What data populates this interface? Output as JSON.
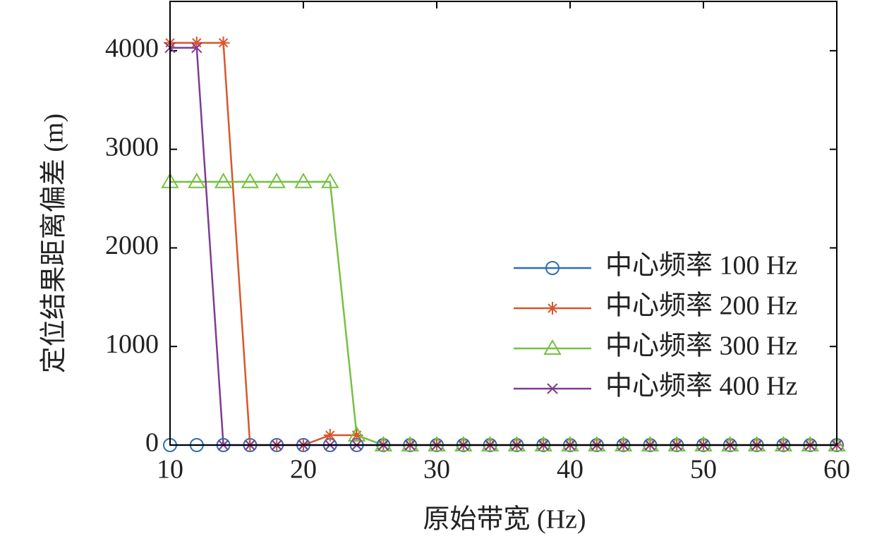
{
  "chart_data": {
    "type": "line",
    "x_label": "原始带宽 (Hz)",
    "y_label": "定位结果距离偏差 (m)",
    "x": [
      10,
      12,
      14,
      16,
      18,
      20,
      22,
      24,
      26,
      28,
      30,
      32,
      34,
      36,
      38,
      40,
      42,
      44,
      46,
      48,
      50,
      52,
      54,
      56,
      58,
      60
    ],
    "series": [
      {
        "name": "中心频率 100 Hz",
        "color": "#2f6fb0",
        "marker": "circle",
        "values": [
          0,
          0,
          0,
          0,
          0,
          0,
          0,
          0,
          0,
          0,
          0,
          0,
          0,
          0,
          0,
          0,
          0,
          0,
          0,
          0,
          0,
          0,
          0,
          0,
          0,
          0
        ]
      },
      {
        "name": "中心频率 200 Hz",
        "color": "#d9562a",
        "marker": "asterisk",
        "values": [
          4080,
          4080,
          4080,
          0,
          0,
          0,
          100,
          100,
          0,
          0,
          0,
          0,
          0,
          0,
          0,
          0,
          0,
          0,
          0,
          0,
          0,
          0,
          0,
          0,
          0,
          0
        ]
      },
      {
        "name": "中心频率 300 Hz",
        "color": "#77c043",
        "marker": "triangle",
        "values": [
          2670,
          2670,
          2670,
          2670,
          2670,
          2670,
          2670,
          100,
          0,
          0,
          0,
          0,
          0,
          0,
          0,
          0,
          0,
          0,
          0,
          0,
          0,
          0,
          0,
          0,
          0,
          0
        ]
      },
      {
        "name": "中心频率 400 Hz",
        "color": "#7e3b92",
        "marker": "x",
        "values": [
          4030,
          4030,
          0,
          0,
          0,
          0,
          0,
          0,
          0,
          0,
          0,
          0,
          0,
          0,
          0,
          0,
          0,
          0,
          0,
          0,
          0,
          0,
          0,
          0,
          0,
          0
        ]
      }
    ],
    "xlim": [
      10,
      60
    ],
    "xticks": [
      10,
      20,
      30,
      40,
      50,
      60
    ],
    "ylim": [
      0,
      4500
    ],
    "yticks": [
      0,
      1000,
      2000,
      3000,
      4000
    ],
    "legend": "lower right",
    "grid": false
  }
}
